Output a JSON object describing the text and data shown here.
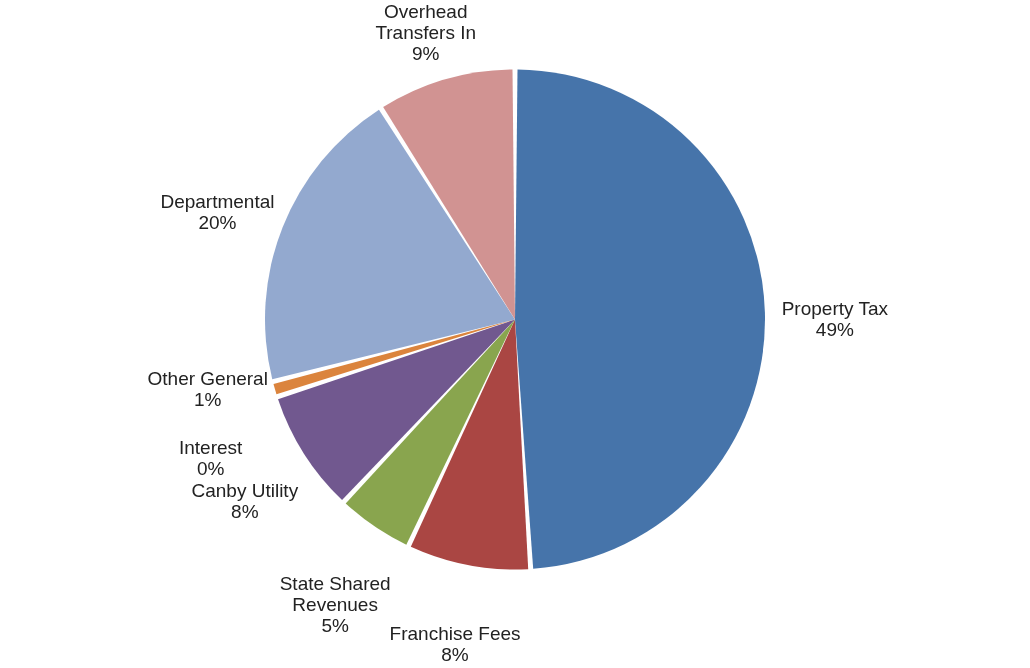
{
  "chart_data": {
    "type": "pie",
    "categories": [
      "Property Tax",
      "Franchise Fees",
      "State Shared Revenues",
      "Canby Utility",
      "Interest",
      "Other General",
      "Departmental",
      "Overhead Transfers In"
    ],
    "values": [
      49,
      8,
      5,
      8,
      0,
      1,
      20,
      9
    ],
    "colors": [
      "#4674aa",
      "#aa4643",
      "#89a54e",
      "#71588f",
      "#4198af",
      "#db843d",
      "#93a9cf",
      "#d19392"
    ],
    "value_labels": [
      "49%",
      "8%",
      "5%",
      "8%",
      "0%",
      "1%",
      "20%",
      "9%"
    ],
    "legend": false
  }
}
